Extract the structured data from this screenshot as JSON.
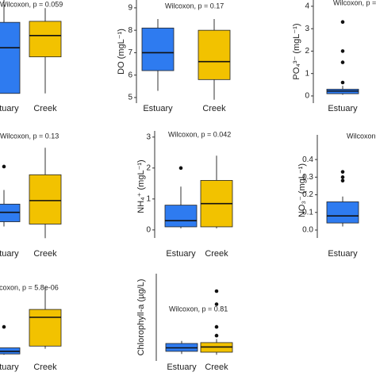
{
  "chart_data": [
    {
      "type": "box",
      "annotation": "Wilcoxon, p = 0.059",
      "categories": [
        "Estuary",
        "Creek"
      ],
      "colors": [
        "#2e7bf0",
        "#f2c200"
      ],
      "ylim": [
        0,
        100
      ],
      "boxes": [
        {
          "low": 8,
          "q1": 8,
          "median": 53,
          "q3": 78,
          "high": 100,
          "outliers": []
        },
        {
          "low": 8,
          "q1": 44,
          "median": 65,
          "q3": 79,
          "high": 92,
          "outliers": []
        }
      ]
    },
    {
      "type": "box",
      "annotation": "Wilcoxon, p = 0.17",
      "ylabel": "DO (mgL⁻¹)",
      "categories": [
        "Estuary",
        "Creek"
      ],
      "colors": [
        "#2e7bf0",
        "#f2c200"
      ],
      "ylim": [
        4.75,
        9.35
      ],
      "yticks": [
        5,
        6,
        7,
        8,
        9
      ],
      "boxes": [
        {
          "low": 5.3,
          "q1": 6.2,
          "median": 7.0,
          "q3": 8.1,
          "high": 8.5,
          "outliers": []
        },
        {
          "low": 4.9,
          "q1": 5.8,
          "median": 6.6,
          "q3": 8.0,
          "high": 8.5,
          "outliers": []
        }
      ]
    },
    {
      "type": "box",
      "annotation": "Wilcoxon, p =",
      "ylabel": "PO₄³⁻ (mgL⁻¹)",
      "categories": [
        "Estuary"
      ],
      "colors": [
        "#2e7bf0"
      ],
      "ylim": [
        -0.32,
        4.28
      ],
      "yticks": [
        0,
        1,
        2,
        3,
        4
      ],
      "boxes": [
        {
          "low": 0.05,
          "q1": 0.1,
          "median": 0.22,
          "q3": 0.3,
          "high": 0.45,
          "outliers": [
            3.3,
            2.0,
            1.5,
            0.6
          ]
        }
      ]
    },
    {
      "type": "box",
      "annotation": "Wilcoxon, p = 0.13",
      "categories": [
        "Estuary",
        "Creek"
      ],
      "colors": [
        "#2e7bf0",
        "#f2c200"
      ],
      "ylim": [
        0,
        100
      ],
      "boxes": [
        {
          "low": 22,
          "q1": 26,
          "median": 34,
          "q3": 41,
          "high": 53,
          "outliers": [
            73
          ]
        },
        {
          "low": 12,
          "q1": 24,
          "median": 44,
          "q3": 66,
          "high": 89,
          "outliers": []
        }
      ]
    },
    {
      "type": "box",
      "annotation": "Wilcoxon, p = 0.042",
      "ylabel": "NH₄⁺ (mgL⁻¹)",
      "categories": [
        "Estuary",
        "Creek"
      ],
      "colors": [
        "#2e7bf0",
        "#f2c200"
      ],
      "ylim": [
        -0.26,
        3.2
      ],
      "yticks": [
        0,
        1,
        2,
        3
      ],
      "boxes": [
        {
          "low": 0.05,
          "q1": 0.1,
          "median": 0.3,
          "q3": 0.8,
          "high": 1.4,
          "outliers": [
            2.0
          ]
        },
        {
          "low": 0.05,
          "q1": 0.1,
          "median": 0.85,
          "q3": 1.6,
          "high": 2.4,
          "outliers": []
        }
      ]
    },
    {
      "type": "box",
      "annotation": "Wilcoxon,",
      "ylabel": "NO₃⁻ (mgL⁻¹)",
      "categories": [
        "Estuary"
      ],
      "colors": [
        "#2e7bf0"
      ],
      "ylim": [
        -0.045,
        0.54
      ],
      "yticks": [
        {
          "value": 0,
          "label": "0.0"
        },
        0.1,
        0.2,
        0.3,
        0.4
      ],
      "boxes": [
        {
          "low": 0.02,
          "q1": 0.04,
          "median": 0.08,
          "q3": 0.16,
          "high": 0.19,
          "outliers": [
            0.33,
            0.3,
            0.28
          ]
        }
      ]
    },
    {
      "type": "box",
      "annotation": "ilcoxon, p = 5.8e-06",
      "categories": [
        "Estuary",
        "Creek"
      ],
      "colors": [
        "#2e7bf0",
        "#f2c200"
      ],
      "ylim": [
        0,
        100
      ],
      "boxes": [
        {
          "low": 7,
          "q1": 8,
          "median": 11,
          "q3": 15,
          "high": 15,
          "outliers": [
            39
          ]
        },
        {
          "low": 14,
          "q1": 17,
          "median": 50,
          "q3": 59,
          "high": 85,
          "outliers": []
        }
      ]
    },
    {
      "type": "box",
      "annotation": "Wilcoxon, p = 0.81",
      "ylabel": "Chlorophyll-a (µg/L)",
      "categories": [
        "Estuary",
        "Creek"
      ],
      "colors": [
        "#2e7bf0",
        "#f2c200"
      ],
      "ylim": [
        0,
        100
      ],
      "boxes": [
        {
          "low": 8,
          "q1": 11,
          "median": 15,
          "q3": 20,
          "high": 23,
          "outliers": []
        },
        {
          "low": 7,
          "q1": 10,
          "median": 16,
          "q3": 21,
          "high": 25,
          "outliers": [
            29,
            39,
            65,
            80
          ]
        }
      ]
    }
  ]
}
